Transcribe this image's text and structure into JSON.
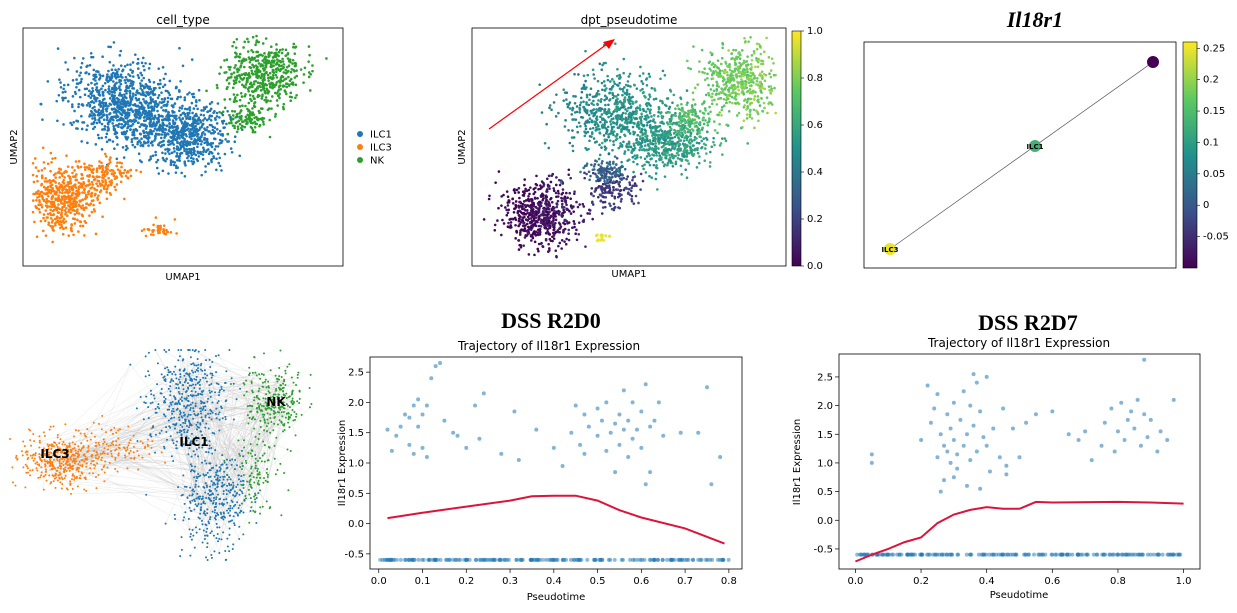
{
  "colors": {
    "ILC1": "#1f77b4",
    "ILC3": "#ff7f0e",
    "NK": "#2ca02c",
    "points": "#1f77b4",
    "curve": "#dc143c",
    "arrow": "#ff0000"
  },
  "chart_data": [
    {
      "id": "umap-celltype",
      "type": "scatter",
      "title": "cell_type",
      "xlabel": "UMAP1",
      "ylabel": "UMAP2",
      "legend": {
        "placement": "right",
        "entries": [
          "ILC1",
          "ILC3",
          "NK"
        ]
      },
      "series": [
        {
          "name": "ILC1",
          "clusters": [
            [
              0.3,
              0.3,
              0.14,
              0.14,
              700
            ],
            [
              0.52,
              0.45,
              0.1,
              0.12,
              500
            ],
            [
              0.4,
              0.4,
              0.12,
              0.1,
              300
            ]
          ]
        },
        {
          "name": "ILC3",
          "clusters": [
            [
              0.12,
              0.72,
              0.09,
              0.12,
              500
            ],
            [
              0.25,
              0.62,
              0.07,
              0.06,
              150
            ],
            [
              0.42,
              0.85,
              0.04,
              0.03,
              40
            ]
          ]
        },
        {
          "name": "NK",
          "clusters": [
            [
              0.75,
              0.2,
              0.1,
              0.12,
              500
            ],
            [
              0.7,
              0.38,
              0.05,
              0.05,
              100
            ]
          ]
        }
      ]
    },
    {
      "id": "umap-pseudotime",
      "type": "scatter",
      "title": "dpt_pseudotime",
      "xlabel": "UMAP1",
      "ylabel": "UMAP2",
      "colorbar": {
        "range": [
          0.0,
          1.0
        ],
        "ticks": [
          "0.0",
          "0.2",
          "0.4",
          "0.6",
          "0.8",
          "1.0"
        ],
        "colormap": "viridis"
      }
    },
    {
      "id": "paga-il18r1",
      "type": "scatter",
      "title": "Il18r1",
      "nodes": [
        {
          "label": "ILC3",
          "value": 0.25
        },
        {
          "label": "ILC1",
          "value": 0.13
        },
        {
          "label": "",
          "value": -0.1
        }
      ],
      "colorbar": {
        "range": [
          -0.1,
          0.26
        ],
        "ticks": [
          "0.25",
          "0.2",
          "0.15",
          "0.1",
          "0.05",
          "0",
          "-0.05"
        ],
        "colormap": "viridis"
      }
    },
    {
      "id": "force-graph",
      "type": "scatter",
      "labels": [
        "ILC3",
        "ILC1",
        "NK"
      ]
    },
    {
      "id": "traj-d0",
      "type": "scatter",
      "heading": "DSS R2D0",
      "title": "Trajectory of Il18r1 Expression",
      "xlabel": "Pseudotime",
      "ylabel": "Il18r1 Expression",
      "xlim": [
        -0.02,
        0.83
      ],
      "ylim": [
        -0.75,
        2.75
      ],
      "xticks": [
        0.0,
        0.1,
        0.2,
        0.3,
        0.4,
        0.5,
        0.6,
        0.7,
        0.8
      ],
      "yticks": [
        -0.5,
        0.0,
        0.5,
        1.0,
        1.5,
        2.0,
        2.5
      ],
      "zero_line_value": -0.6,
      "trend": [
        [
          0.02,
          0.09
        ],
        [
          0.1,
          0.18
        ],
        [
          0.2,
          0.28
        ],
        [
          0.3,
          0.38
        ],
        [
          0.35,
          0.45
        ],
        [
          0.4,
          0.46
        ],
        [
          0.45,
          0.46
        ],
        [
          0.5,
          0.38
        ],
        [
          0.55,
          0.22
        ],
        [
          0.6,
          0.1
        ],
        [
          0.7,
          -0.08
        ],
        [
          0.79,
          -0.33
        ]
      ],
      "points": [
        [
          0.02,
          1.55
        ],
        [
          0.03,
          1.2
        ],
        [
          0.04,
          1.45
        ],
        [
          0.05,
          1.6
        ],
        [
          0.06,
          1.8
        ],
        [
          0.07,
          1.75
        ],
        [
          0.07,
          1.3
        ],
        [
          0.08,
          1.15
        ],
        [
          0.08,
          1.95
        ],
        [
          0.09,
          1.6
        ],
        [
          0.09,
          2.05
        ],
        [
          0.1,
          1.8
        ],
        [
          0.11,
          1.95
        ],
        [
          0.1,
          1.25
        ],
        [
          0.11,
          1.1
        ],
        [
          0.12,
          2.4
        ],
        [
          0.13,
          2.6
        ],
        [
          0.14,
          2.65
        ],
        [
          0.15,
          1.7
        ],
        [
          0.17,
          1.5
        ],
        [
          0.18,
          1.45
        ],
        [
          0.2,
          1.25
        ],
        [
          0.22,
          1.95
        ],
        [
          0.23,
          1.4
        ],
        [
          0.24,
          2.15
        ],
        [
          0.28,
          1.15
        ],
        [
          0.31,
          1.85
        ],
        [
          0.32,
          1.05
        ],
        [
          0.36,
          1.55
        ],
        [
          0.4,
          1.25
        ],
        [
          0.42,
          0.95
        ],
        [
          0.44,
          1.5
        ],
        [
          0.45,
          1.95
        ],
        [
          0.46,
          1.3
        ],
        [
          0.47,
          1.8
        ],
        [
          0.48,
          1.6
        ],
        [
          0.5,
          1.9
        ],
        [
          0.5,
          1.45
        ],
        [
          0.51,
          1.7
        ],
        [
          0.52,
          2.0
        ],
        [
          0.52,
          1.2
        ],
        [
          0.53,
          1.5
        ],
        [
          0.54,
          1.65
        ],
        [
          0.55,
          1.8
        ],
        [
          0.55,
          1.3
        ],
        [
          0.56,
          1.55
        ],
        [
          0.56,
          2.2
        ],
        [
          0.57,
          1.1
        ],
        [
          0.57,
          1.7
        ],
        [
          0.58,
          1.4
        ],
        [
          0.58,
          2.0
        ],
        [
          0.59,
          1.55
        ],
        [
          0.6,
          1.85
        ],
        [
          0.6,
          1.25
        ],
        [
          0.61,
          0.65
        ],
        [
          0.61,
          2.3
        ],
        [
          0.62,
          1.6
        ],
        [
          0.62,
          0.85
        ],
        [
          0.63,
          1.7
        ],
        [
          0.64,
          2.0
        ],
        [
          0.65,
          1.45
        ],
        [
          0.69,
          1.5
        ],
        [
          0.73,
          1.5
        ],
        [
          0.75,
          2.25
        ],
        [
          0.76,
          0.65
        ],
        [
          0.78,
          1.1
        ],
        [
          0.54,
          0.85
        ],
        [
          0.47,
          1.15
        ]
      ]
    },
    {
      "id": "traj-d7",
      "type": "scatter",
      "heading": "DSS R2D7",
      "title": "Trajectory of Il18r1 Expression",
      "xlabel": "Pseudotime",
      "ylabel": "Il18r1 Expression",
      "xlim": [
        -0.05,
        1.05
      ],
      "ylim": [
        -0.85,
        2.9
      ],
      "xticks": [
        0.0,
        0.2,
        0.4,
        0.6,
        0.8,
        1.0
      ],
      "yticks": [
        -0.5,
        0.0,
        0.5,
        1.0,
        1.5,
        2.0,
        2.5
      ],
      "zero_line_value": -0.6,
      "trend": [
        [
          0.0,
          -0.72
        ],
        [
          0.05,
          -0.6
        ],
        [
          0.1,
          -0.5
        ],
        [
          0.15,
          -0.38
        ],
        [
          0.2,
          -0.3
        ],
        [
          0.25,
          -0.05
        ],
        [
          0.3,
          0.1
        ],
        [
          0.35,
          0.18
        ],
        [
          0.4,
          0.23
        ],
        [
          0.45,
          0.2
        ],
        [
          0.5,
          0.2
        ],
        [
          0.55,
          0.32
        ],
        [
          0.6,
          0.31
        ],
        [
          0.8,
          0.32
        ],
        [
          0.9,
          0.31
        ],
        [
          1.0,
          0.29
        ]
      ],
      "points": [
        [
          0.05,
          1.15
        ],
        [
          0.05,
          1.0
        ],
        [
          0.2,
          1.4
        ],
        [
          0.22,
          2.35
        ],
        [
          0.23,
          1.7
        ],
        [
          0.24,
          1.95
        ],
        [
          0.25,
          2.2
        ],
        [
          0.25,
          1.1
        ],
        [
          0.26,
          0.5
        ],
        [
          0.26,
          1.5
        ],
        [
          0.27,
          1.3
        ],
        [
          0.27,
          0.7
        ],
        [
          0.28,
          1.85
        ],
        [
          0.28,
          1.2
        ],
        [
          0.29,
          1.0
        ],
        [
          0.29,
          1.6
        ],
        [
          0.3,
          2.05
        ],
        [
          0.3,
          1.4
        ],
        [
          0.31,
          0.9
        ],
        [
          0.31,
          1.15
        ],
        [
          0.32,
          1.75
        ],
        [
          0.33,
          2.25
        ],
        [
          0.33,
          1.3
        ],
        [
          0.34,
          0.6
        ],
        [
          0.34,
          1.5
        ],
        [
          0.35,
          2.0
        ],
        [
          0.35,
          1.05
        ],
        [
          0.36,
          1.65
        ],
        [
          0.37,
          1.2
        ],
        [
          0.37,
          2.4
        ],
        [
          0.38,
          0.55
        ],
        [
          0.38,
          1.9
        ],
        [
          0.39,
          1.45
        ],
        [
          0.4,
          1.3
        ],
        [
          0.41,
          0.85
        ],
        [
          0.42,
          1.6
        ],
        [
          0.44,
          1.1
        ],
        [
          0.45,
          1.95
        ],
        [
          0.46,
          0.8
        ],
        [
          0.48,
          1.6
        ],
        [
          0.5,
          1.1
        ],
        [
          0.55,
          1.85
        ],
        [
          0.6,
          1.9
        ],
        [
          0.65,
          1.5
        ],
        [
          0.68,
          1.4
        ],
        [
          0.7,
          1.55
        ],
        [
          0.72,
          1.05
        ],
        [
          0.75,
          1.3
        ],
        [
          0.76,
          1.7
        ],
        [
          0.78,
          1.95
        ],
        [
          0.79,
          1.2
        ],
        [
          0.8,
          1.55
        ],
        [
          0.81,
          2.05
        ],
        [
          0.82,
          1.4
        ],
        [
          0.83,
          1.75
        ],
        [
          0.84,
          1.9
        ],
        [
          0.85,
          1.6
        ],
        [
          0.86,
          2.1
        ],
        [
          0.87,
          1.3
        ],
        [
          0.88,
          1.85
        ],
        [
          0.89,
          1.45
        ],
        [
          0.9,
          1.75
        ],
        [
          0.92,
          1.2
        ],
        [
          0.93,
          1.55
        ],
        [
          0.95,
          1.4
        ],
        [
          0.97,
          2.1
        ],
        [
          0.88,
          2.8
        ],
        [
          0.36,
          2.55
        ],
        [
          0.4,
          2.5
        ],
        [
          0.46,
          0.95
        ],
        [
          0.52,
          1.7
        ],
        [
          0.3,
          0.75
        ]
      ]
    }
  ]
}
